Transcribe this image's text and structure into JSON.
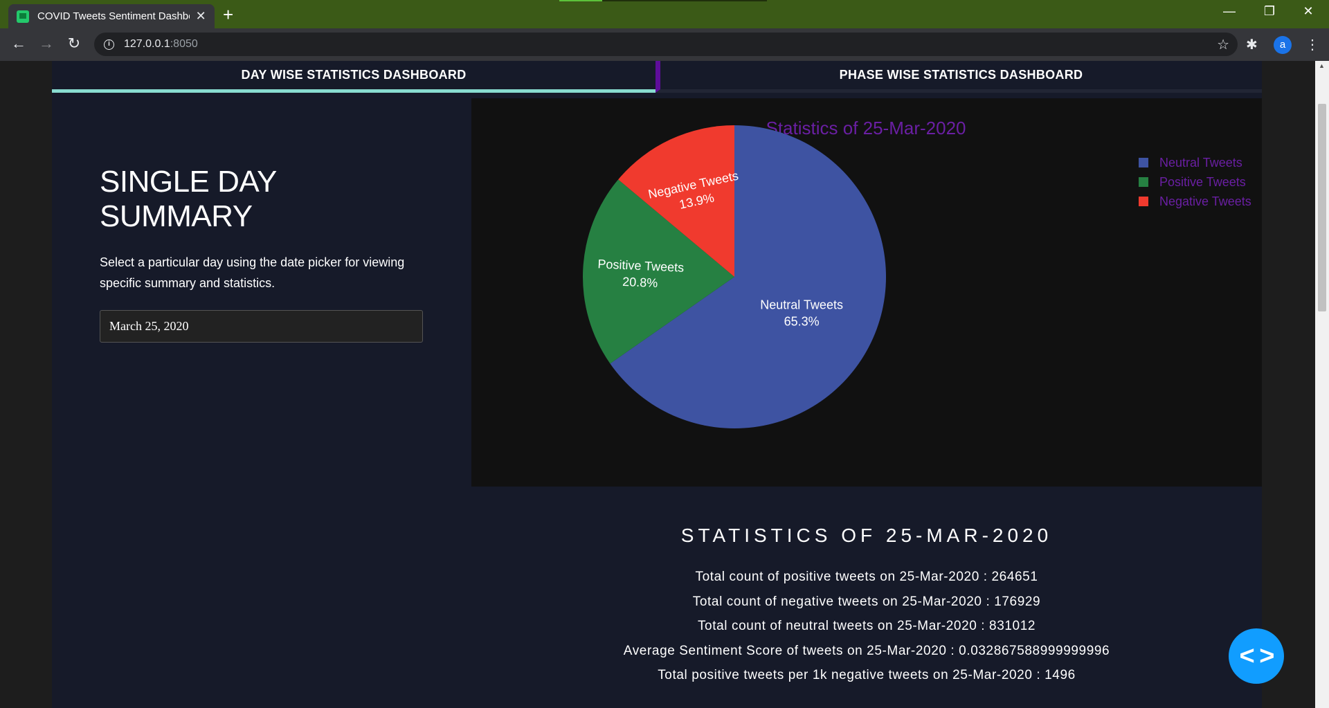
{
  "browser": {
    "tab_title": "COVID Tweets Sentiment Dashboard",
    "tab_close": "✕",
    "new_tab": "+",
    "url_host": "127.0.0.1",
    "url_port": ":8050",
    "profile_letter": "a",
    "window_controls": {
      "minimize": "—",
      "restore": "❐",
      "close": "✕"
    },
    "icons": [
      "back-icon",
      "forward-icon",
      "reload-icon",
      "info-icon",
      "star-icon",
      "extensions-icon",
      "menu-icon"
    ]
  },
  "nav_tabs": [
    {
      "label": "DAY WISE STATISTICS DASHBOARD",
      "active": true
    },
    {
      "label": "PHASE WISE STATISTICS DASHBOARD",
      "active": false
    }
  ],
  "summary": {
    "title": "SINGLE DAY SUMMARY",
    "description": "Select a particular day using the date picker for viewing specific summary and statistics.",
    "date_value": "March 25, 2020"
  },
  "chart_data": {
    "type": "pie",
    "title": "Statistics of 25-Mar-2020",
    "labels": [
      "Neutral Tweets",
      "Positive Tweets",
      "Negative Tweets"
    ],
    "values": [
      65.3,
      20.8,
      13.9
    ],
    "percent_labels": [
      "65.3%",
      "20.8%",
      "13.9%"
    ],
    "colors": [
      "#3e53a2",
      "#268042",
      "#f03a2e"
    ],
    "legend_position": "top-right",
    "title_color": "#6a1fa3",
    "legend_text_color": "#6a1fa3"
  },
  "stats": {
    "title": "STATISTICS OF 25-MAR-2020",
    "lines": [
      "Total count of positive tweets on 25-Mar-2020 : 264651",
      "Total count of negative tweets on 25-Mar-2020 : 176929",
      "Total count of neutral tweets on 25-Mar-2020 : 831012",
      "Average Sentiment Score of tweets on 25-Mar-2020 : 0.032867588999999996",
      "Total positive tweets per 1k negative tweets on 25-Mar-2020 : 1496"
    ]
  },
  "fab": {
    "label": "< >",
    "icon": "code-icon"
  },
  "colors": {
    "browser_frame": "#3b5a17",
    "app_background": "#161a29",
    "active_tab_underline": "#88dcd0",
    "tab_separator": "#5e0d9a",
    "fab": "#119dff"
  }
}
